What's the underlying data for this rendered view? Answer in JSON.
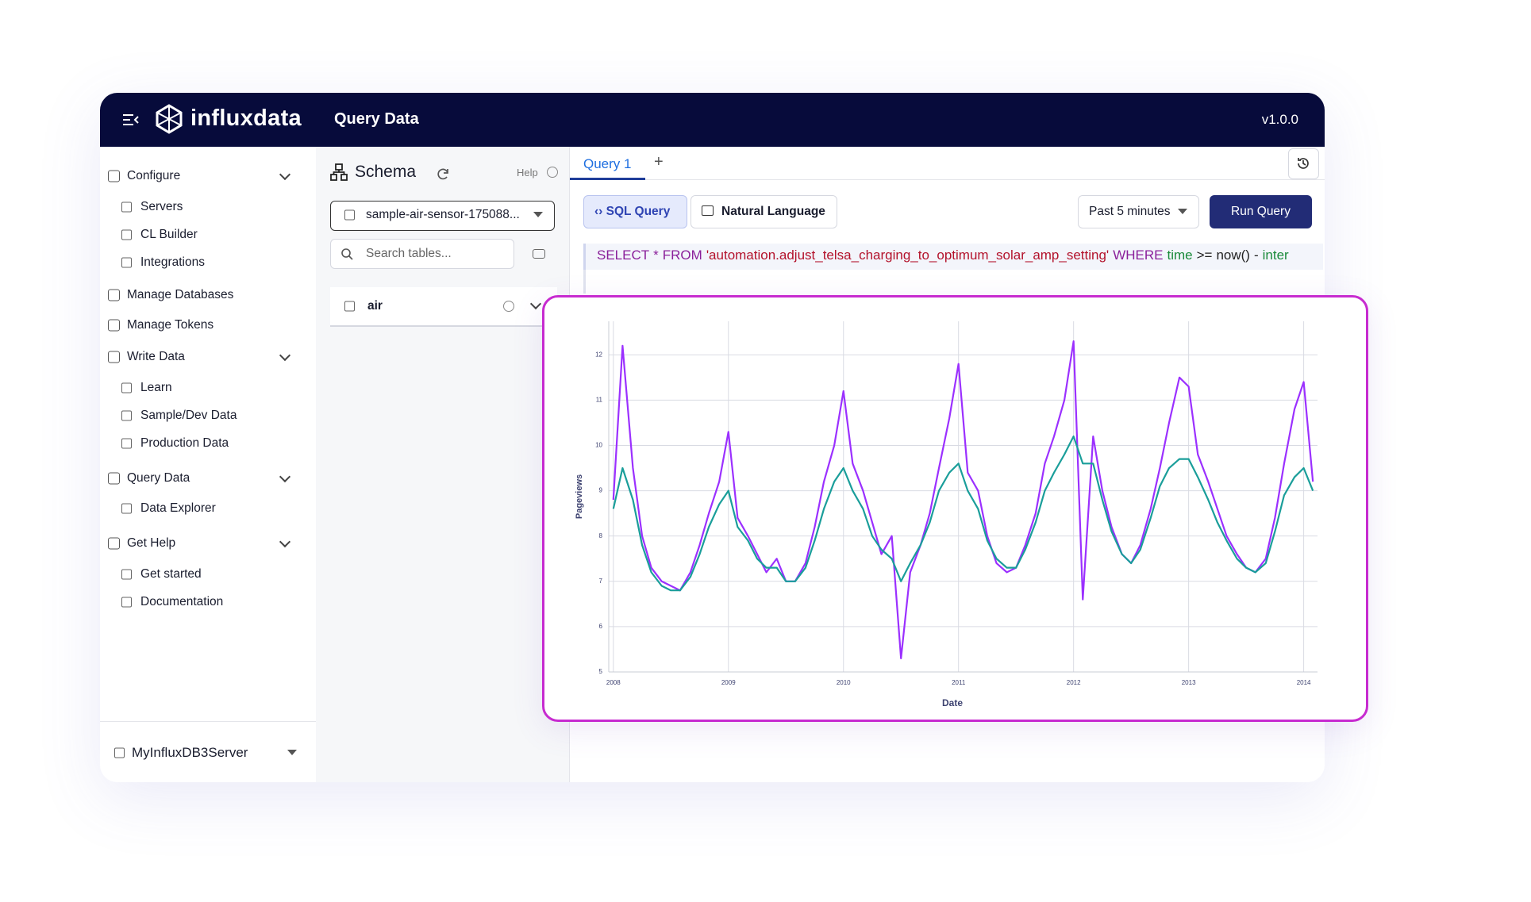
{
  "header": {
    "brand": "influxdata",
    "title": "Query Data",
    "version": "v1.0.0"
  },
  "nav": [
    "Configure",
    "Servers",
    "CL Builder",
    "Integrations",
    "Manage Databases",
    "Manage Tokens",
    "Write Data",
    "Learn",
    "Sample/Dev Data",
    "Production Data",
    "Query Data",
    "Data Explorer",
    "Get Help",
    "Get started",
    "Documentation"
  ],
  "server": "MyInfluxDB3Server",
  "schema": {
    "title": "Schema",
    "help": "Help",
    "database": "sample-air-sensor-175088...",
    "search": "Search tables...",
    "tables": [
      "air"
    ]
  },
  "tabs": [
    "Query 1"
  ],
  "modes": [
    "SQL Query",
    "Natural Language"
  ],
  "time_range": "Past 5 minutes",
  "run": "Run Query",
  "query": [
    "SELECT",
    "*",
    "FROM",
    "'automation.adjust_telsa_charging_to_optimum_solar_amp_setting'",
    "WHERE",
    "time",
    ">=",
    "now()",
    "-",
    "inter"
  ],
  "chart_data": {
    "type": "line",
    "xlabel": "Date",
    "ylabel": "Pageviews",
    "x": [
      2008,
      2008.08,
      2008.17,
      2008.25,
      2008.33,
      2008.42,
      2008.5,
      2008.58,
      2008.67,
      2008.75,
      2008.83,
      2008.92,
      2009,
      2009.08,
      2009.17,
      2009.25,
      2009.33,
      2009.42,
      2009.5,
      2009.58,
      2009.67,
      2009.75,
      2009.83,
      2009.92,
      2010,
      2010.08,
      2010.17,
      2010.25,
      2010.33,
      2010.42,
      2010.5,
      2010.58,
      2010.67,
      2010.75,
      2010.83,
      2010.92,
      2011,
      2011.08,
      2011.17,
      2011.25,
      2011.33,
      2011.42,
      2011.5,
      2011.58,
      2011.67,
      2011.75,
      2011.83,
      2011.92,
      2012,
      2012.08,
      2012.17,
      2012.25,
      2012.33,
      2012.42,
      2012.5,
      2012.58,
      2012.67,
      2012.75,
      2012.83,
      2012.92,
      2013,
      2013.08,
      2013.17,
      2013.25,
      2013.33,
      2013.42,
      2013.5,
      2013.58,
      2013.67,
      2013.75,
      2013.83,
      2013.92,
      2014,
      2014.08
    ],
    "series": [
      {
        "color": "#9b30ff",
        "values": [
          8.8,
          12.2,
          9.5,
          8.0,
          7.3,
          7.0,
          6.9,
          6.8,
          7.2,
          7.8,
          8.5,
          9.2,
          10.3,
          8.4,
          8.0,
          7.6,
          7.2,
          7.5,
          7.0,
          7.0,
          7.4,
          8.2,
          9.2,
          10.0,
          11.2,
          9.6,
          9.0,
          8.3,
          7.6,
          8.0,
          5.3,
          7.2,
          7.8,
          8.5,
          9.5,
          10.6,
          11.8,
          9.4,
          9.0,
          8.0,
          7.4,
          7.2,
          7.3,
          7.8,
          8.5,
          9.6,
          10.2,
          11.0,
          12.3,
          6.6,
          10.2,
          9.0,
          8.2,
          7.6,
          7.4,
          7.8,
          8.6,
          9.5,
          10.5,
          11.5,
          11.3,
          9.8,
          9.2,
          8.6,
          8.0,
          7.6,
          7.3,
          7.2,
          7.5,
          8.4,
          9.6,
          10.8,
          11.4,
          9.2
        ]
      },
      {
        "color": "#1a9e9a",
        "values": [
          8.6,
          9.5,
          8.8,
          7.8,
          7.2,
          6.9,
          6.8,
          6.8,
          7.1,
          7.6,
          8.2,
          8.7,
          9.0,
          8.2,
          7.9,
          7.5,
          7.3,
          7.3,
          7.0,
          7.0,
          7.3,
          7.9,
          8.6,
          9.2,
          9.5,
          9.0,
          8.6,
          8.0,
          7.7,
          7.5,
          7.0,
          7.4,
          7.8,
          8.3,
          9.0,
          9.4,
          9.6,
          9.0,
          8.6,
          7.9,
          7.5,
          7.3,
          7.3,
          7.7,
          8.3,
          9.0,
          9.4,
          9.8,
          10.2,
          9.6,
          9.6,
          8.8,
          8.1,
          7.6,
          7.4,
          7.7,
          8.4,
          9.1,
          9.5,
          9.7,
          9.7,
          9.3,
          8.8,
          8.3,
          7.9,
          7.5,
          7.3,
          7.2,
          7.4,
          8.1,
          8.9,
          9.3,
          9.5,
          9.0
        ]
      }
    ],
    "xlim": [
      2007.96,
      2014.12
    ],
    "xticks": [
      2008,
      2009,
      2010,
      2011,
      2012,
      2013,
      2014
    ],
    "ylim": [
      5,
      12.74
    ],
    "yticks": [
      5,
      6,
      7,
      8,
      9,
      10,
      11,
      12
    ],
    "grid": true
  }
}
